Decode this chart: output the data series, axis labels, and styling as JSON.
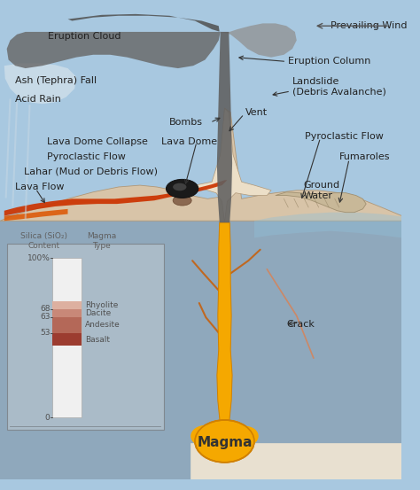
{
  "bg_sky": "#a8c8e0",
  "bg_subsurface": "#8fa8bc",
  "bg_subsurface2": "#9aacba",
  "volcano_fill": "#d8c4a8",
  "volcano_peak": "#ecdfc8",
  "lava_red": "#cc3300",
  "lava_orange": "#dd5500",
  "magma_orange": "#f5a800",
  "magma_yellow": "#ffcc00",
  "eruption_col": "#606060",
  "cloud_dark": "#686868",
  "cloud_med": "#909090",
  "cloud_light": "#c0c0c0",
  "ash_white": "#dde8f0",
  "fumaroles_col": "#c8b898",
  "rock_white": "#e8e0d0",
  "gw_blue": "#90c0d8",
  "inset_bg": "#aabbc8",
  "lc": "#222222",
  "ac": "#333333",
  "fs": 8.0,
  "fs_i": 6.5,
  "labels": {
    "eruption_cloud": "Eruption Cloud",
    "ash_fall": "Ash (Tephra) Fall",
    "acid_rain": "Acid Rain",
    "lava_dome_collapse": "Lava Dome Collapse",
    "pyroclastic_flow_left": "Pyroclastic Flow",
    "lahar": "Lahar (Mud or Debris Flow)",
    "lava_flow": "Lava Flow",
    "bombs": "Bombs",
    "lava_dome": "Lava Dome",
    "vent": "Vent",
    "eruption_column": "Eruption Column",
    "landslide": "Landslide\n(Debris Avalanche)",
    "pyroclastic_flow_right": "Pyroclastic Flow",
    "fumaroles": "Fumaroles",
    "ground_water": "Ground\nWater",
    "crack": "Crack",
    "magma": "Magma",
    "prevailing_wind": "Prevailing Wind"
  },
  "silica_header": "Silica (SiO₂)\nContent",
  "magma_header": "Magma\nType",
  "magma_types": [
    "Rhyolite",
    "Dacite",
    "Andesite",
    "Basalt"
  ],
  "figsize": [
    4.74,
    5.53
  ],
  "dpi": 100
}
